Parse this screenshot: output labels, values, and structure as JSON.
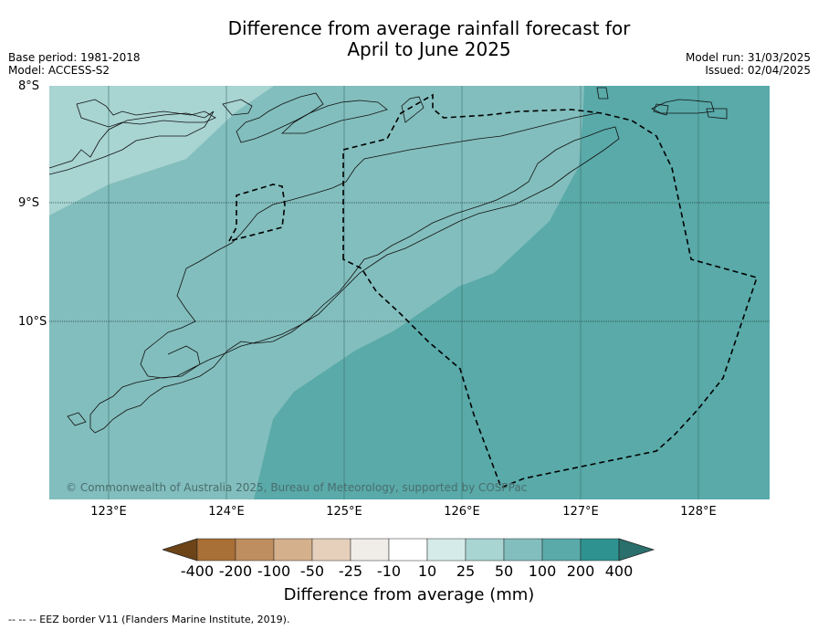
{
  "title_line1": "Difference from average rainfall forecast for",
  "title_line2": "April to June 2025",
  "meta_left": {
    "base_period": "Base period: 1981-2018",
    "model": "Model: ACCESS-S2"
  },
  "meta_right": {
    "model_run": "Model run: 31/03/2025",
    "issued": "Issued: 02/04/2025"
  },
  "map": {
    "lat_labels": [
      "8°S",
      "9°S",
      "10°S"
    ],
    "lon_labels": [
      "123°E",
      "124°E",
      "125°E",
      "126°E",
      "127°E",
      "128°E"
    ],
    "copyright": "© Commonwealth of Australia 2025, Bureau of Meteorology, supported by COSPPac"
  },
  "legend": {
    "title": "Difference from average (mm)",
    "labels": [
      "-400",
      "-200",
      "-100",
      "-50",
      "-25",
      "-10",
      "10",
      "25",
      "50",
      "100",
      "200",
      "400"
    ],
    "colors": [
      "#6d4418",
      "#a86f36",
      "#bf8e60",
      "#d4b08c",
      "#e6d0bc",
      "#f0ece8",
      "#ffffff",
      "#d5ebe9",
      "#a8d4d2",
      "#82bebd",
      "#59aaa9",
      "#2e9390",
      "#2a6f6c"
    ]
  },
  "footer": "-- -- -- EEZ border V11 (Flanders Marine Institute, 2019)."
}
